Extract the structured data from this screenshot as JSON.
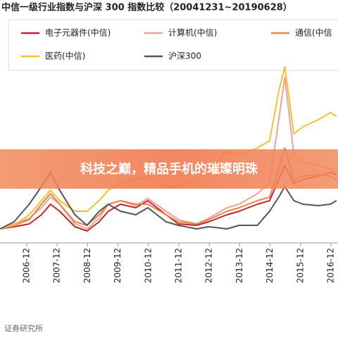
{
  "chart_data": {
    "type": "line",
    "title": "中信一级行业指数与沪深 300 指数比较（20041231~20190628）",
    "banner": "科技之巅，精品手机的璀璨明珠",
    "source": "证券研究所",
    "x": [
      2006.05,
      2006.5,
      2007.0,
      2007.4,
      2007.7,
      2008.0,
      2008.5,
      2008.9,
      2009.3,
      2009.6,
      2010.0,
      2010.5,
      2010.9,
      2011.5,
      2011.9,
      2012.5,
      2012.9,
      2013.5,
      2013.9,
      2014.5,
      2014.9,
      2015.2,
      2015.4,
      2015.7,
      2016.0,
      2016.5,
      2016.9,
      2017.1
    ],
    "xlim": [
      2006.04,
      2017.15
    ],
    "xticks": [
      {
        "value": 2006.92,
        "label": "2006-12"
      },
      {
        "value": 2007.92,
        "label": "2007-12"
      },
      {
        "value": 2008.92,
        "label": "2008-12"
      },
      {
        "value": 2009.92,
        "label": "2009-12"
      },
      {
        "value": 2010.92,
        "label": "2010-12"
      },
      {
        "value": 2011.92,
        "label": "2011-12"
      },
      {
        "value": 2012.92,
        "label": "2012-12"
      },
      {
        "value": 2013.92,
        "label": "2013-12"
      },
      {
        "value": 2014.92,
        "label": "2014-12"
      },
      {
        "value": 2015.92,
        "label": "2015-12"
      },
      {
        "value": 2016.92,
        "label": "2016-12"
      }
    ],
    "ylim": [
      0,
      13
    ],
    "series": [
      {
        "name": "电子元器件(中信)",
        "color": "#c0262d",
        "values": [
          1.0,
          1.15,
          1.35,
          2.0,
          2.75,
          2.25,
          1.15,
          0.85,
          1.5,
          2.25,
          2.75,
          2.5,
          3.0,
          2.0,
          1.35,
          1.25,
          1.5,
          2.0,
          2.25,
          2.75,
          3.0,
          4.5,
          5.5,
          4.25,
          4.5,
          4.75,
          5.0,
          4.85
        ]
      },
      {
        "name": "计算机(中信)",
        "color": "#f4a09a",
        "values": [
          1.0,
          1.35,
          1.75,
          2.5,
          3.25,
          2.75,
          1.35,
          1.0,
          1.75,
          2.75,
          3.0,
          2.65,
          3.15,
          2.25,
          1.65,
          1.35,
          1.75,
          2.5,
          2.75,
          3.5,
          4.25,
          8.75,
          11.75,
          6.25,
          5.75,
          5.5,
          5.25,
          5.0
        ]
      },
      {
        "name": "通信(中信",
        "color": "#e8834a",
        "values": [
          1.0,
          1.25,
          1.65,
          2.75,
          3.5,
          2.75,
          1.5,
          1.25,
          2.0,
          2.75,
          3.0,
          2.75,
          2.75,
          2.0,
          1.5,
          1.35,
          1.65,
          2.25,
          2.5,
          3.0,
          3.25,
          5.25,
          6.75,
          4.5,
          4.75,
          4.85,
          4.75,
          4.5
        ]
      },
      {
        "name": "医药(中信)",
        "color": "#f2c12e",
        "values": [
          1.0,
          1.25,
          2.0,
          3.0,
          3.75,
          3.0,
          2.25,
          2.25,
          3.0,
          3.75,
          4.25,
          4.5,
          4.75,
          4.0,
          4.0,
          4.5,
          5.25,
          6.5,
          6.25,
          6.75,
          7.25,
          10.75,
          12.5,
          7.75,
          8.25,
          8.75,
          9.25,
          9.0
        ]
      },
      {
        "name": "沪深300",
        "color": "#555555",
        "values": [
          1.0,
          1.5,
          2.75,
          4.0,
          5.0,
          3.75,
          2.0,
          1.25,
          2.25,
          2.75,
          2.25,
          2.0,
          2.5,
          1.5,
          1.25,
          1.0,
          1.15,
          1.0,
          1.25,
          1.25,
          2.25,
          3.25,
          4.0,
          3.0,
          2.75,
          2.65,
          2.75,
          3.0
        ]
      }
    ]
  }
}
